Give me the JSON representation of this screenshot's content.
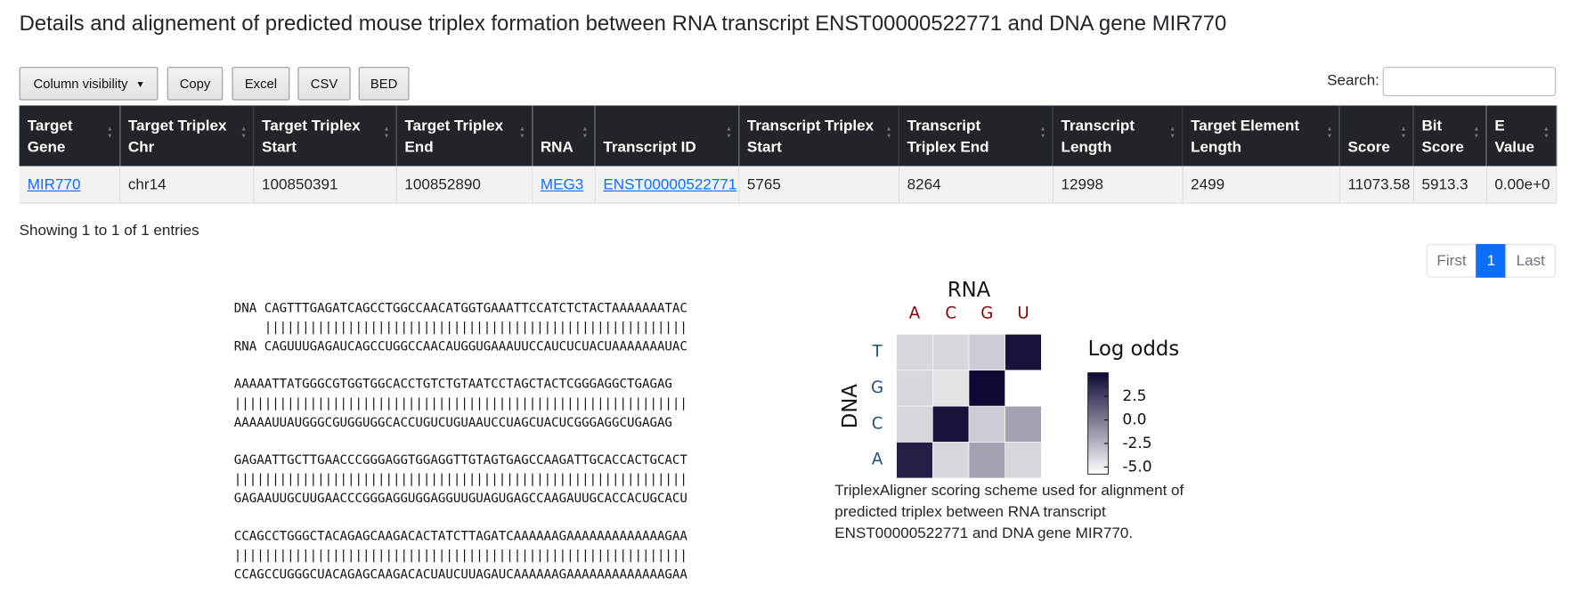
{
  "title": "Details and alignement of predicted mouse triplex formation between RNA transcript ENST00000522771 and DNA gene MIR770",
  "buttons": [
    "Column visibility",
    "Copy",
    "Excel",
    "CSV",
    "BED"
  ],
  "search_label": "Search:",
  "table": {
    "headers": [
      "Target Gene",
      "Target Triplex Chr",
      "Target Triplex Start",
      "Target Triplex End",
      "RNA",
      "Transcript ID",
      "Transcript Triplex Start",
      "Transcript Triplex End",
      "Transcript Length",
      "Target Element Length",
      "Score",
      "Bit Score",
      "E Value"
    ],
    "rows": [
      [
        "MIR770",
        "chr14",
        "100850391",
        "100852890",
        "MEG3",
        "ENST00000522771",
        "5765",
        "8264",
        "12998",
        "2499",
        "11073.58",
        "5913.3",
        "0.00e+0"
      ]
    ]
  },
  "info": "Showing 1 to 1 of 1 entries",
  "pagination": [
    "First",
    "1",
    "Last"
  ],
  "alignment": [
    {
      "dna": "DNA CAGTTTGAGATCAGCCTGGCCAACATGGTGAAATTCCATCTCTACTAAAAAAATAC",
      "match": "    ||||||||||||||||||||||||||||||||||||||||||||||||||||||||",
      "rna": "RNA CAGUUUGAGAUCAGCCUGGCCAACAUGGUGAAAUUCCAUCUCUACUAAAAAAAUAC"
    },
    {
      "dna": "AAAAATTATGGGCGTGGTGGCACCTGTCTGTAATCCTAGCTACTCGGGAGGCTGAGAG",
      "match": "||||||||||||||||||||||||||||||||||||||||||||||||||||||||||||",
      "rna": "AAAAAUUAUGGGCGUGGUGGCACCUGUCUGUAAUCCUAGCUACUCGGGAGGCUGAGAG"
    },
    {
      "dna": "GAGAATTGCTTGAACCCGGGAGGTGGAGGTTGTAGTGAGCCAAGATTGCACCACTGCACT",
      "match": "||||||||||||||||||||||||||||||||||||||||||||||||||||||||||||",
      "rna": "GAGAAUUGCUUGAACCCGGGAGGUGGAGGUUGUAGUGAGCCAAGAUUGCACCACUGCACU"
    },
    {
      "dna": "CCAGCCTGGGCTACAGAGCAAGACACTATCTTAGATCAAAAAAGAAAAAAAAAAAAAGAA",
      "match": "||||||||||||||||||||||||||||||||||||||||||||||||||||||||||||",
      "rna": "CCAGCCUGGGCUACAGAGCAAGACACUAUCUUAGAUCAAAAAAGAAAAAAAAAAAAAGAA"
    }
  ],
  "chart_data": {
    "type": "heatmap",
    "title": "RNA",
    "x_categories": [
      "A",
      "C",
      "G",
      "U"
    ],
    "ylabel": "DNA",
    "y_categories": [
      "T",
      "G",
      "C",
      "A"
    ],
    "values": [
      [
        -4,
        -4,
        -3.5,
        4.5
      ],
      [
        -4,
        -4.5,
        5,
        -5.75
      ],
      [
        -4,
        4.5,
        -3.5,
        -1.7
      ],
      [
        4,
        -4,
        -1.7,
        -4
      ]
    ],
    "colorbar_label": "Log odds",
    "clim": [
      -5.75,
      5
    ],
    "cticks": [
      2.5,
      {
        "value": 0,
        "label": "0.0"
      },
      -2.5,
      {
        "value": -5,
        "label": "-5.0"
      }
    ],
    "colors": [
      "#ffffff",
      "#0c0933"
    ]
  },
  "caption": "TriplexAligner scoring scheme used for alignment of predicted triplex between RNA transcript ENST00000522771 and DNA gene MIR770."
}
